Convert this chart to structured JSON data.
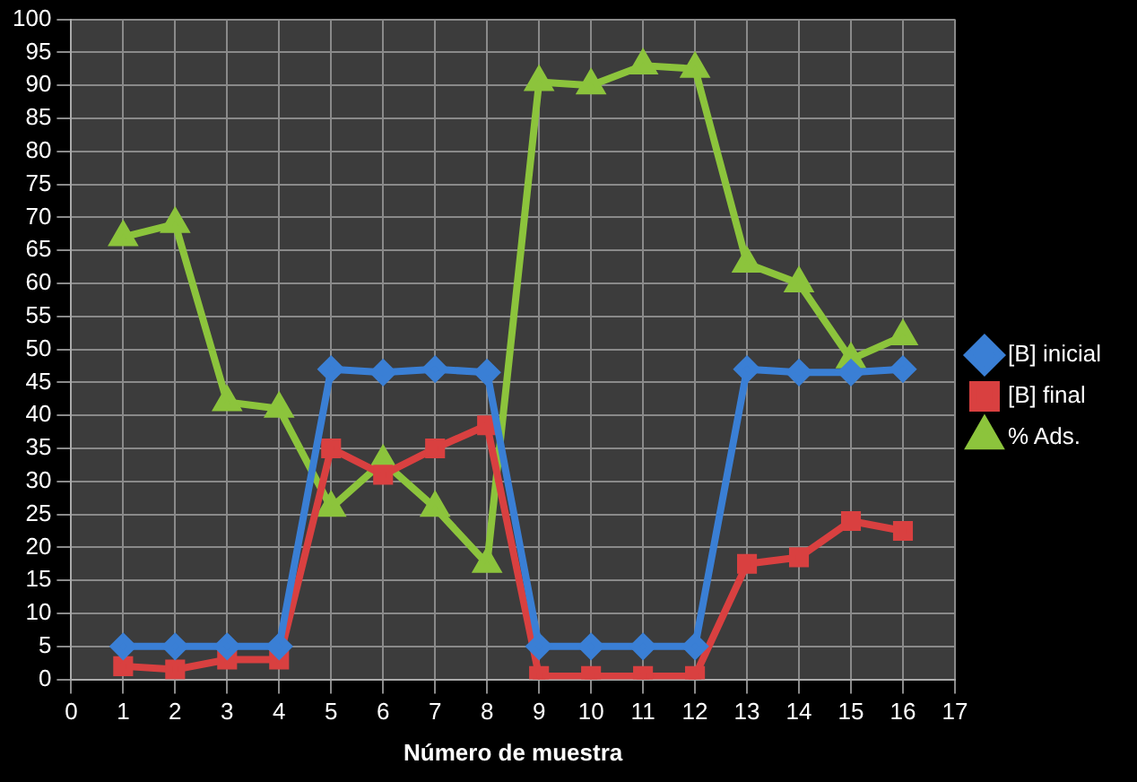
{
  "chart_data": {
    "type": "line",
    "xlabel": "Número de muestra",
    "x": [
      1,
      2,
      3,
      4,
      5,
      6,
      7,
      8,
      9,
      10,
      11,
      12,
      13,
      14,
      15,
      16
    ],
    "series": [
      {
        "name": "[B] inicial",
        "color": "#3a7fd5",
        "marker": "diamond",
        "values": [
          5,
          5,
          5,
          5,
          47,
          46.5,
          47,
          46.5,
          5,
          5,
          5,
          5,
          47,
          46.5,
          46.5,
          47
        ]
      },
      {
        "name": "[B] final",
        "color": "#d94040",
        "marker": "square",
        "values": [
          2,
          1.5,
          3,
          3,
          35,
          31,
          35,
          38.5,
          0.5,
          0.5,
          0.5,
          0.5,
          17.5,
          18.5,
          24,
          22.5
        ]
      },
      {
        "name": "% Ads.",
        "color": "#8cc43c",
        "marker": "triangle",
        "values": [
          67,
          69,
          42,
          41,
          26,
          33,
          26,
          17.5,
          90.5,
          90,
          93,
          92.5,
          63,
          60,
          48.5,
          52
        ]
      }
    ],
    "xlim": [
      0,
      17
    ],
    "xticks": [
      0,
      1,
      2,
      3,
      4,
      5,
      6,
      7,
      8,
      9,
      10,
      11,
      12,
      13,
      14,
      15,
      16,
      17
    ],
    "ylim": [
      0,
      100
    ],
    "yticks": [
      0,
      5,
      10,
      15,
      20,
      25,
      30,
      35,
      40,
      45,
      50,
      55,
      60,
      65,
      70,
      75,
      80,
      85,
      90,
      95,
      100
    ],
    "grid": true,
    "legend": "right"
  }
}
